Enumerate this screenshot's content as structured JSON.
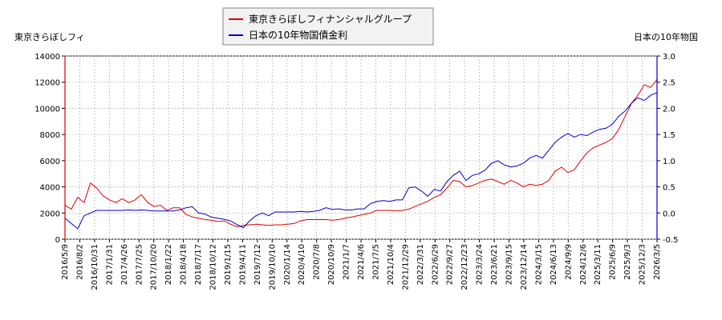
{
  "chart_data": {
    "type": "line",
    "left_axis_title": "東京きらぼしフィ",
    "right_axis_title": "日本の10年物国",
    "legend": [
      {
        "label": "東京きらぼしフィナンシャルグループ",
        "color": "#dd0000"
      },
      {
        "label": "日本の10年物国債金利",
        "color": "#0000cc"
      }
    ],
    "y_left": {
      "min": 0,
      "max": 14000,
      "ticks": [
        "0",
        "2000",
        "4000",
        "6000",
        "8000",
        "10000",
        "12000",
        "14000"
      ]
    },
    "y_right": {
      "min": -0.5,
      "max": 3.0,
      "ticks": [
        "-0.5",
        "0.0",
        "0.5",
        "1.0",
        "1.5",
        "2.0",
        "2.5",
        "3.0"
      ]
    },
    "x_tick_labels": [
      "2016/5/9",
      "2016/8/2",
      "2016/10/31",
      "2017/1/31",
      "2017/4/26",
      "2017/7/25",
      "2017/10/20",
      "2018/1/22",
      "2018/4/18",
      "2018/7/17",
      "2018/10/12",
      "2019/1/15",
      "2019/4/11",
      "2019/7/12",
      "2019/10/10",
      "2020/1/14",
      "2020/4/10",
      "2020/7/8",
      "2020/10/9",
      "2021/1/7",
      "2021/4/6",
      "2021/7/5",
      "2021/10/4",
      "2021/12/29",
      "2022/3/31",
      "2022/6/29",
      "2022/9/27",
      "2022/12/23",
      "2023/3/24",
      "2023/6/21",
      "2023/9/15",
      "2023/12/14",
      "2024/3/15",
      "2024/6/13",
      "2024/9/9",
      "2024/12/6",
      "2025/3/11",
      "2025/6/9",
      "2025/9/3",
      "2025/12/3",
      "2026/3/5"
    ],
    "series": [
      {
        "name": "東京きらぼしフィナンシャルグループ",
        "axis": "left",
        "color": "#dd0000",
        "values": [
          [
            0,
            2600
          ],
          [
            1,
            2300
          ],
          [
            2,
            3200
          ],
          [
            3,
            2800
          ],
          [
            4,
            4300
          ],
          [
            5,
            3900
          ],
          [
            6,
            3300
          ],
          [
            7,
            3000
          ],
          [
            8,
            2800
          ],
          [
            9,
            3100
          ],
          [
            10,
            2800
          ],
          [
            11,
            3000
          ],
          [
            12,
            3400
          ],
          [
            13,
            2800
          ],
          [
            14,
            2500
          ],
          [
            15,
            2600
          ],
          [
            16,
            2200
          ],
          [
            17,
            2400
          ],
          [
            18,
            2400
          ],
          [
            19,
            1900
          ],
          [
            20,
            1700
          ],
          [
            21,
            1600
          ],
          [
            22,
            1500
          ],
          [
            23,
            1450
          ],
          [
            24,
            1350
          ],
          [
            25,
            1400
          ],
          [
            26,
            1150
          ],
          [
            27,
            950
          ],
          [
            28,
            1050
          ],
          [
            29,
            1100
          ],
          [
            30,
            1150
          ],
          [
            31,
            1100
          ],
          [
            32,
            1050
          ],
          [
            33,
            1100
          ],
          [
            34,
            1100
          ],
          [
            35,
            1150
          ],
          [
            36,
            1200
          ],
          [
            37,
            1400
          ],
          [
            38,
            1500
          ],
          [
            39,
            1500
          ],
          [
            40,
            1500
          ],
          [
            41,
            1500
          ],
          [
            42,
            1450
          ],
          [
            43,
            1500
          ],
          [
            44,
            1600
          ],
          [
            45,
            1700
          ],
          [
            46,
            1800
          ],
          [
            47,
            1900
          ],
          [
            48,
            2000
          ],
          [
            49,
            2200
          ],
          [
            50,
            2200
          ],
          [
            51,
            2200
          ],
          [
            52,
            2150
          ],
          [
            53,
            2200
          ],
          [
            54,
            2300
          ],
          [
            55,
            2500
          ],
          [
            56,
            2700
          ],
          [
            57,
            2900
          ],
          [
            58,
            3200
          ],
          [
            59,
            3400
          ],
          [
            60,
            3900
          ],
          [
            61,
            4500
          ],
          [
            62,
            4400
          ],
          [
            63,
            4000
          ],
          [
            64,
            4100
          ],
          [
            65,
            4300
          ],
          [
            66,
            4500
          ],
          [
            67,
            4600
          ],
          [
            68,
            4400
          ],
          [
            69,
            4200
          ],
          [
            70,
            4500
          ],
          [
            71,
            4300
          ],
          [
            72,
            4000
          ],
          [
            73,
            4200
          ],
          [
            74,
            4100
          ],
          [
            75,
            4200
          ],
          [
            76,
            4500
          ],
          [
            77,
            5200
          ],
          [
            78,
            5500
          ],
          [
            79,
            5100
          ],
          [
            80,
            5300
          ],
          [
            81,
            6000
          ],
          [
            82,
            6600
          ],
          [
            83,
            7000
          ],
          [
            84,
            7200
          ],
          [
            85,
            7400
          ],
          [
            86,
            7700
          ],
          [
            87,
            8400
          ],
          [
            88,
            9400
          ],
          [
            89,
            10400
          ],
          [
            90,
            11000
          ],
          [
            91,
            11800
          ],
          [
            92,
            11600
          ],
          [
            93,
            12200
          ]
        ]
      },
      {
        "name": "日本の10年物国債金利",
        "axis": "right",
        "color": "#0000cc",
        "values": [
          [
            0,
            -0.1
          ],
          [
            1,
            -0.2
          ],
          [
            2,
            -0.3
          ],
          [
            3,
            -0.05
          ],
          [
            4,
            0.0
          ],
          [
            5,
            0.05
          ],
          [
            6,
            0.05
          ],
          [
            7,
            0.05
          ],
          [
            8,
            0.05
          ],
          [
            9,
            0.05
          ],
          [
            10,
            0.06
          ],
          [
            11,
            0.05
          ],
          [
            12,
            0.06
          ],
          [
            13,
            0.05
          ],
          [
            14,
            0.04
          ],
          [
            15,
            0.04
          ],
          [
            16,
            0.04
          ],
          [
            17,
            0.04
          ],
          [
            18,
            0.06
          ],
          [
            19,
            0.1
          ],
          [
            20,
            0.12
          ],
          [
            21,
            0.0
          ],
          [
            22,
            -0.02
          ],
          [
            23,
            -0.08
          ],
          [
            24,
            -0.1
          ],
          [
            25,
            -0.12
          ],
          [
            26,
            -0.15
          ],
          [
            27,
            -0.22
          ],
          [
            28,
            -0.28
          ],
          [
            29,
            -0.15
          ],
          [
            30,
            -0.05
          ],
          [
            31,
            0.0
          ],
          [
            32,
            -0.05
          ],
          [
            33,
            0.02
          ],
          [
            34,
            0.02
          ],
          [
            35,
            0.02
          ],
          [
            36,
            0.02
          ],
          [
            37,
            0.03
          ],
          [
            38,
            0.02
          ],
          [
            39,
            0.03
          ],
          [
            40,
            0.05
          ],
          [
            41,
            0.1
          ],
          [
            42,
            0.07
          ],
          [
            43,
            0.08
          ],
          [
            44,
            0.06
          ],
          [
            45,
            0.06
          ],
          [
            46,
            0.08
          ],
          [
            47,
            0.08
          ],
          [
            48,
            0.18
          ],
          [
            49,
            0.22
          ],
          [
            50,
            0.24
          ],
          [
            51,
            0.22
          ],
          [
            52,
            0.25
          ],
          [
            53,
            0.25
          ],
          [
            54,
            0.48
          ],
          [
            55,
            0.5
          ],
          [
            56,
            0.42
          ],
          [
            57,
            0.32
          ],
          [
            58,
            0.45
          ],
          [
            59,
            0.42
          ],
          [
            60,
            0.6
          ],
          [
            61,
            0.72
          ],
          [
            62,
            0.8
          ],
          [
            63,
            0.62
          ],
          [
            64,
            0.72
          ],
          [
            65,
            0.75
          ],
          [
            66,
            0.82
          ],
          [
            67,
            0.95
          ],
          [
            68,
            1.0
          ],
          [
            69,
            0.92
          ],
          [
            70,
            0.88
          ],
          [
            71,
            0.9
          ],
          [
            72,
            0.95
          ],
          [
            73,
            1.05
          ],
          [
            74,
            1.1
          ],
          [
            75,
            1.05
          ],
          [
            76,
            1.2
          ],
          [
            77,
            1.35
          ],
          [
            78,
            1.45
          ],
          [
            79,
            1.52
          ],
          [
            80,
            1.45
          ],
          [
            81,
            1.5
          ],
          [
            82,
            1.48
          ],
          [
            83,
            1.55
          ],
          [
            84,
            1.6
          ],
          [
            85,
            1.62
          ],
          [
            86,
            1.7
          ],
          [
            87,
            1.85
          ],
          [
            88,
            1.95
          ],
          [
            89,
            2.1
          ],
          [
            90,
            2.2
          ],
          [
            91,
            2.15
          ],
          [
            92,
            2.25
          ],
          [
            93,
            2.3
          ]
        ]
      }
    ]
  }
}
